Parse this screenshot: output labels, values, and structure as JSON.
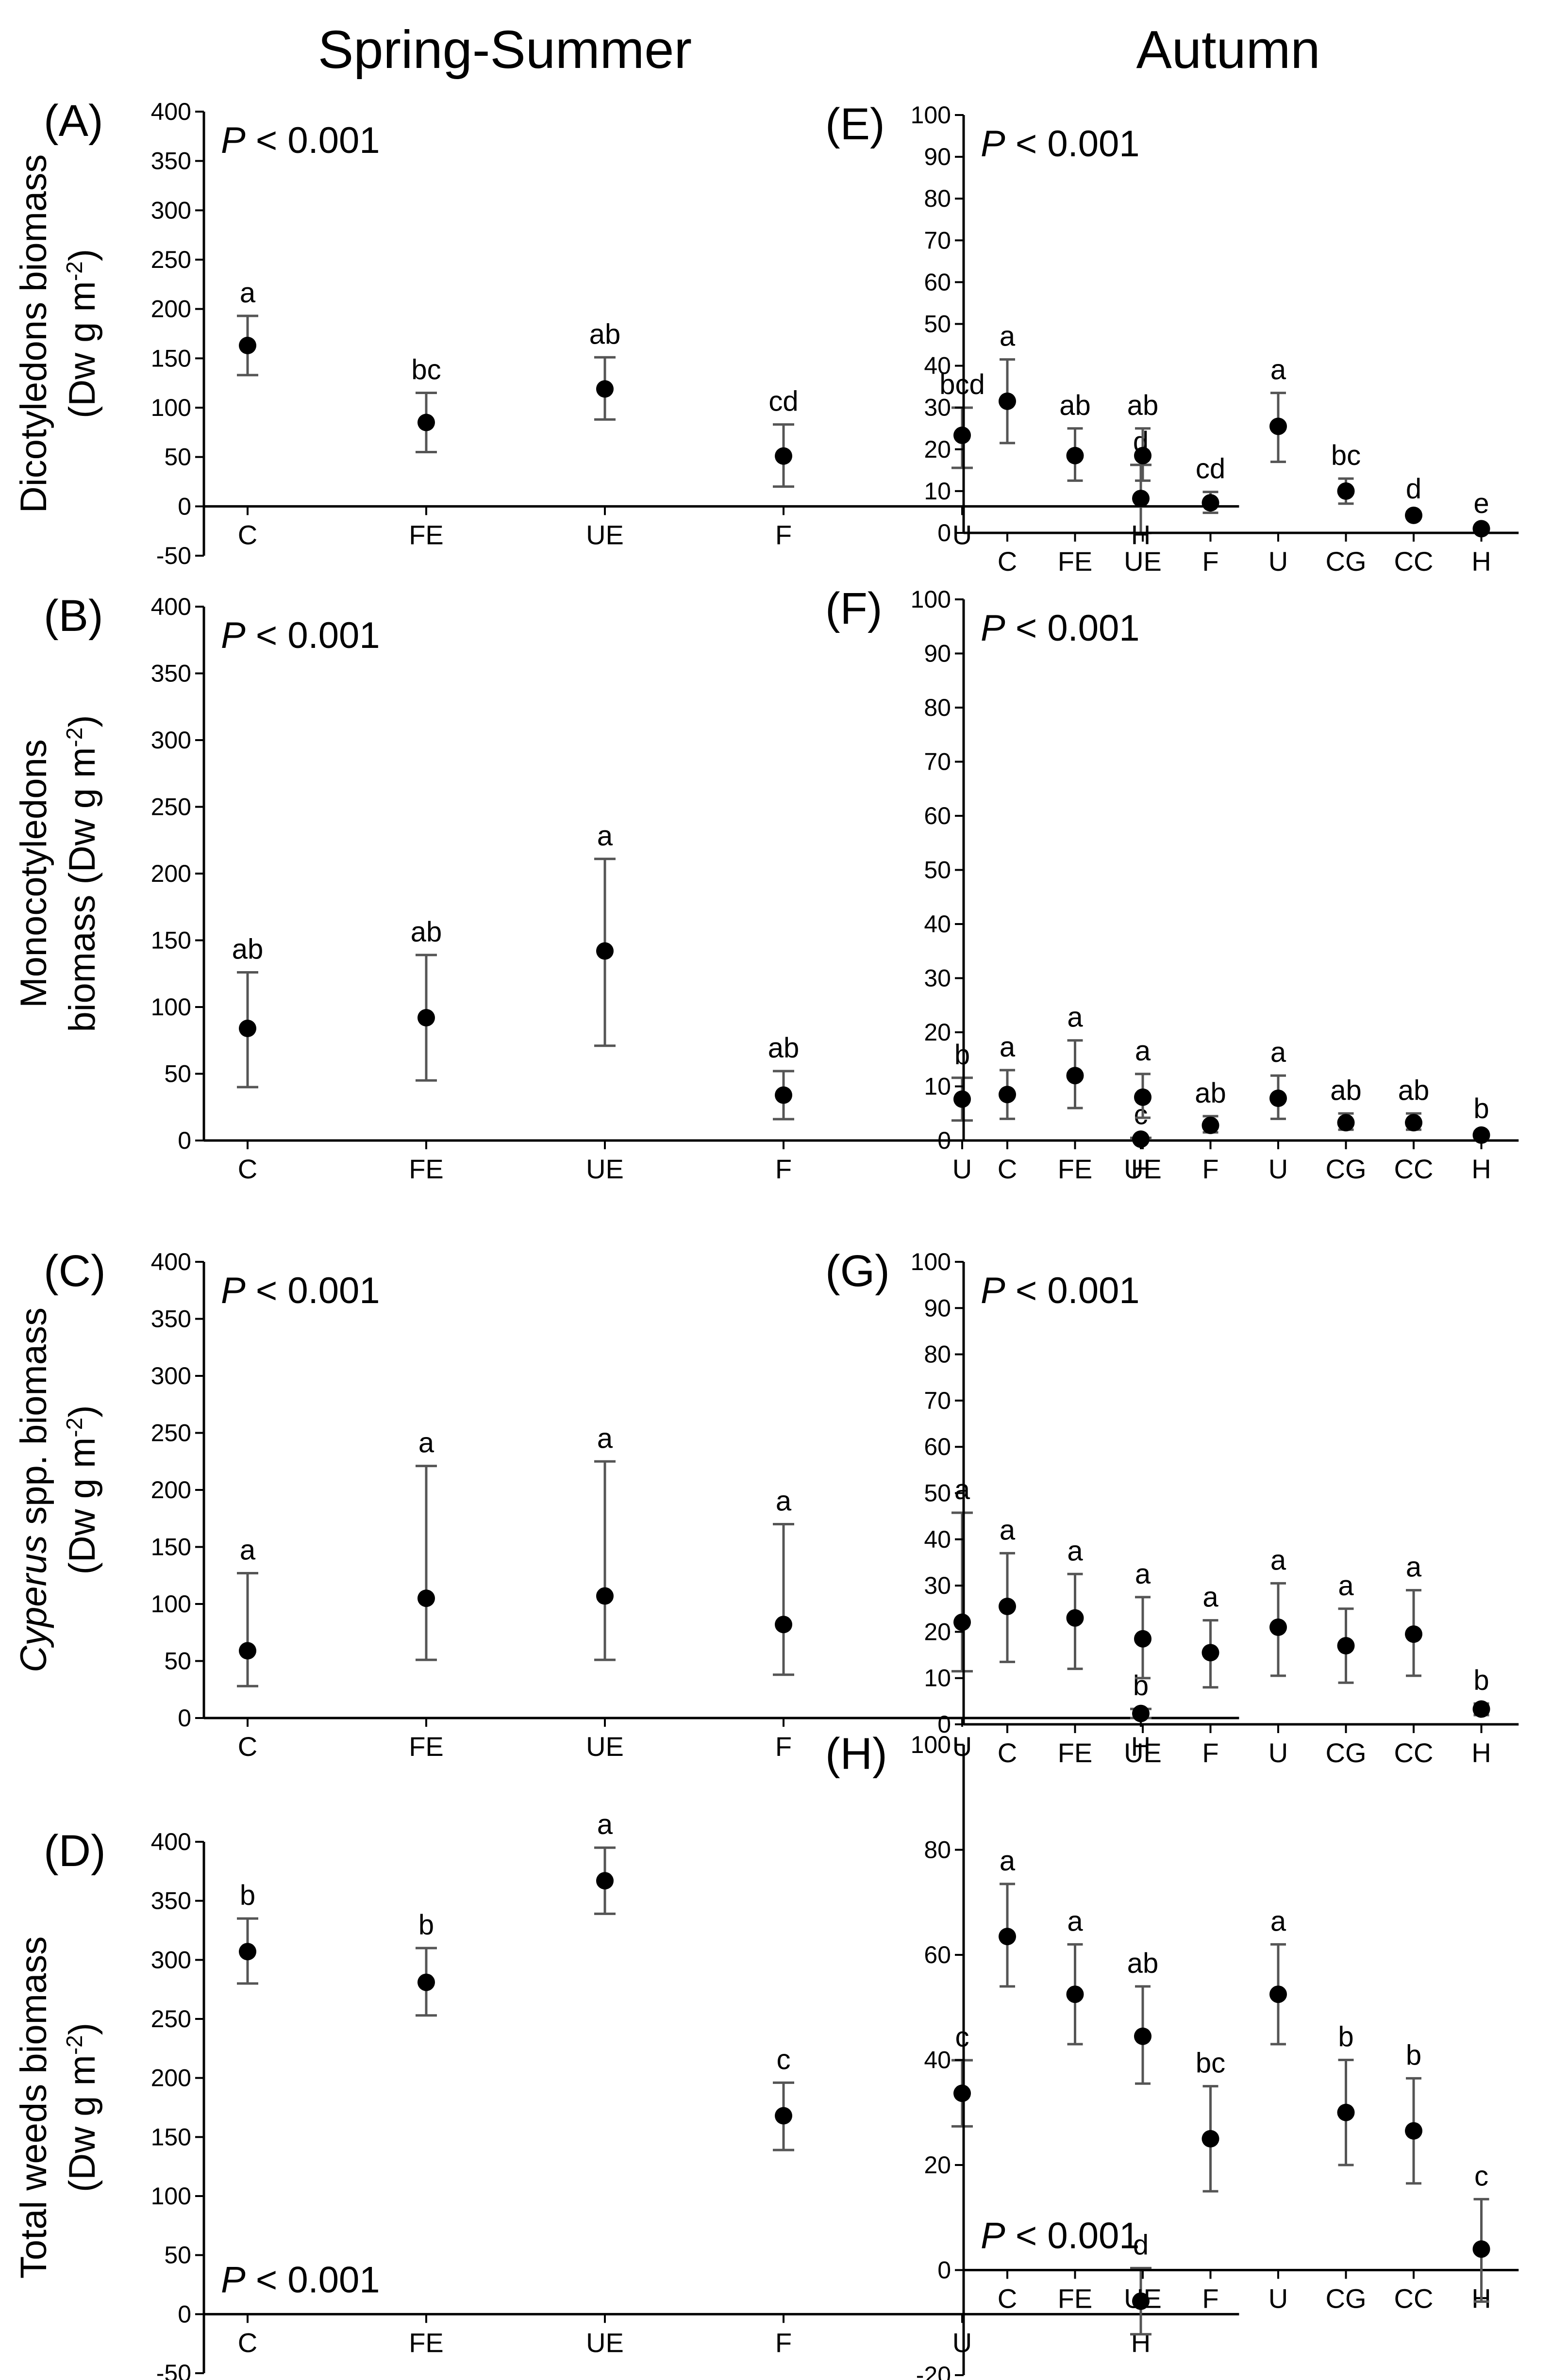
{
  "column_titles": {
    "left": "Spring-Summer",
    "right": "Autumn"
  },
  "chart_data": [
    {
      "id": "A",
      "panel_label": "(A)",
      "type": "scatter",
      "season": "Spring-Summer",
      "ylabel_parts": [
        "Dicotyledons biomass",
        "(Dw g m",
        "-2",
        ")"
      ],
      "p_text": {
        "italic": "P",
        "rest": " < 0.001"
      },
      "p_position": "top-left",
      "ylim": [
        -50,
        400
      ],
      "yticks": [
        -50,
        0,
        50,
        100,
        150,
        200,
        250,
        300,
        350,
        400
      ],
      "categories": [
        "C",
        "FE",
        "UE",
        "F",
        "U",
        "H"
      ],
      "values": [
        163,
        85,
        119,
        51,
        72,
        8
      ],
      "err_low": [
        133,
        55,
        88,
        20,
        39,
        -27
      ],
      "err_high": [
        193,
        115,
        151,
        83,
        100,
        42
      ],
      "letters": [
        "a",
        "bc",
        "ab",
        "cd",
        "bcd",
        "d"
      ]
    },
    {
      "id": "B",
      "panel_label": "(B)",
      "type": "scatter",
      "season": "Spring-Summer",
      "ylabel_parts": [
        "Monocotyledons",
        "biomass (Dw g m",
        "-2",
        ")"
      ],
      "p_text": {
        "italic": "P",
        "rest": " < 0.001"
      },
      "p_position": "top-left",
      "ylim": [
        0,
        400
      ],
      "yticks": [
        0,
        50,
        100,
        150,
        200,
        250,
        300,
        350,
        400
      ],
      "categories": [
        "C",
        "FE",
        "UE",
        "F",
        "U",
        "H"
      ],
      "values": [
        84,
        92,
        142,
        34,
        31,
        1
      ],
      "err_low": [
        40,
        45,
        71,
        16,
        15,
        0
      ],
      "err_high": [
        126,
        139,
        211,
        52,
        47,
        2
      ],
      "letters": [
        "ab",
        "ab",
        "a",
        "ab",
        "b",
        "c"
      ]
    },
    {
      "id": "C",
      "panel_label": "(C)",
      "type": "scatter",
      "season": "Spring-Summer",
      "ylabel_parts": [
        "Cyperus",
        " spp. biomass",
        "(Dw g m",
        "-2",
        ")"
      ],
      "p_text": {
        "italic": "P",
        "rest": " < 0.001"
      },
      "p_position": "top-left",
      "ylim": [
        0,
        400
      ],
      "yticks": [
        0,
        50,
        100,
        150,
        200,
        250,
        300,
        350,
        400
      ],
      "categories": [
        "C",
        "FE",
        "UE",
        "F",
        "U",
        "H"
      ],
      "values": [
        59,
        105,
        107,
        82,
        84,
        4
      ],
      "err_low": [
        28,
        51,
        51,
        38,
        41,
        0
      ],
      "err_high": [
        127,
        221,
        225,
        170,
        180,
        8
      ],
      "letters": [
        "a",
        "a",
        "a",
        "a",
        "a",
        "b"
      ]
    },
    {
      "id": "D",
      "panel_label": "(D)",
      "type": "scatter",
      "season": "Spring-Summer",
      "ylabel_parts": [
        "Total weeds biomass",
        "(Dw g m",
        "-2",
        ")"
      ],
      "p_text": {
        "italic": "P",
        "rest": " < 0.001"
      },
      "p_position": "bottom-left",
      "ylim": [
        -50,
        400
      ],
      "yticks": [
        -50,
        0,
        50,
        100,
        150,
        200,
        250,
        300,
        350,
        400
      ],
      "categories": [
        "C",
        "FE",
        "UE",
        "F",
        "U",
        "H"
      ],
      "values": [
        307,
        281,
        367,
        168,
        187,
        11
      ],
      "err_low": [
        280,
        253,
        339,
        139,
        159,
        -17
      ],
      "err_high": [
        335,
        310,
        395,
        196,
        215,
        39
      ],
      "letters": [
        "b",
        "b",
        "a",
        "c",
        "c",
        "d"
      ]
    },
    {
      "id": "E",
      "panel_label": "(E)",
      "type": "scatter",
      "season": "Autumn",
      "p_text": {
        "italic": "P",
        "rest": " < 0.001"
      },
      "p_position": "top-left",
      "ylim": [
        0,
        100
      ],
      "yticks": [
        0,
        10,
        20,
        30,
        40,
        50,
        60,
        70,
        80,
        90,
        100
      ],
      "categories": [
        "C",
        "FE",
        "UE",
        "F",
        "U",
        "CG",
        "CC",
        "H"
      ],
      "values": [
        31.5,
        18.5,
        18.5,
        7.2,
        25.5,
        10.0,
        4.2,
        1.0
      ],
      "err_low": [
        21.5,
        12.5,
        12.5,
        4.8,
        17.0,
        7.0,
        3.5,
        0.5
      ],
      "err_high": [
        41.5,
        25.0,
        25.0,
        9.8,
        33.5,
        13.0,
        5.0,
        1.5
      ],
      "letters": [
        "a",
        "ab",
        "ab",
        "cd",
        "a",
        "bc",
        "d",
        "e"
      ]
    },
    {
      "id": "F",
      "panel_label": "(F)",
      "type": "scatter",
      "season": "Autumn",
      "p_text": {
        "italic": "P",
        "rest": " < 0.001"
      },
      "p_position": "top-left",
      "ylim": [
        0,
        100
      ],
      "yticks": [
        0,
        10,
        20,
        30,
        40,
        50,
        60,
        70,
        80,
        90,
        100
      ],
      "categories": [
        "C",
        "FE",
        "UE",
        "F",
        "U",
        "CG",
        "CC",
        "H"
      ],
      "values": [
        8.5,
        12.0,
        8.0,
        2.8,
        7.8,
        3.3,
        3.3,
        1.0
      ],
      "err_low": [
        4.0,
        6.0,
        4.2,
        1.5,
        4.0,
        2.0,
        2.0,
        0.3
      ],
      "err_high": [
        13.0,
        18.5,
        12.3,
        4.5,
        12.0,
        5.0,
        5.0,
        1.6
      ],
      "letters": [
        "a",
        "a",
        "a",
        "ab",
        "a",
        "ab",
        "ab",
        "b"
      ]
    },
    {
      "id": "G",
      "panel_label": "(G)",
      "type": "scatter",
      "season": "Autumn",
      "p_text": {
        "italic": "P",
        "rest": " < 0.001"
      },
      "p_position": "top-left",
      "ylim": [
        0,
        100
      ],
      "yticks": [
        0,
        10,
        20,
        30,
        40,
        50,
        60,
        70,
        80,
        90,
        100
      ],
      "categories": [
        "C",
        "FE",
        "UE",
        "F",
        "U",
        "CG",
        "CC",
        "H"
      ],
      "values": [
        25.5,
        23.0,
        18.5,
        15.5,
        21.0,
        17.0,
        19.5,
        3.3
      ],
      "err_low": [
        13.5,
        12.0,
        10.0,
        8.0,
        10.5,
        9.0,
        10.5,
        2.0
      ],
      "err_high": [
        37.0,
        32.5,
        27.5,
        22.5,
        30.5,
        25.0,
        29.0,
        4.5
      ],
      "letters": [
        "a",
        "a",
        "a",
        "a",
        "a",
        "a",
        "a",
        "b"
      ]
    },
    {
      "id": "H",
      "panel_label": "(H)",
      "type": "scatter",
      "season": "Autumn",
      "p_text": {
        "italic": "P",
        "rest": " < 0.001"
      },
      "p_position": "bottom-left",
      "ylim": [
        -20,
        100
      ],
      "yticks": [
        -20,
        0,
        20,
        40,
        60,
        80,
        100
      ],
      "categories": [
        "C",
        "FE",
        "UE",
        "F",
        "U",
        "CG",
        "CC",
        "H"
      ],
      "values": [
        63.5,
        52.5,
        44.5,
        25.0,
        52.5,
        30.0,
        26.5,
        4.0
      ],
      "err_low": [
        54.0,
        43.0,
        35.5,
        15.0,
        43.0,
        20.0,
        16.5,
        -6.0
      ],
      "err_high": [
        73.5,
        62.0,
        54.0,
        35.0,
        62.0,
        40.0,
        36.5,
        13.5
      ],
      "letters": [
        "a",
        "a",
        "ab",
        "bc",
        "a",
        "b",
        "b",
        "c"
      ]
    }
  ]
}
